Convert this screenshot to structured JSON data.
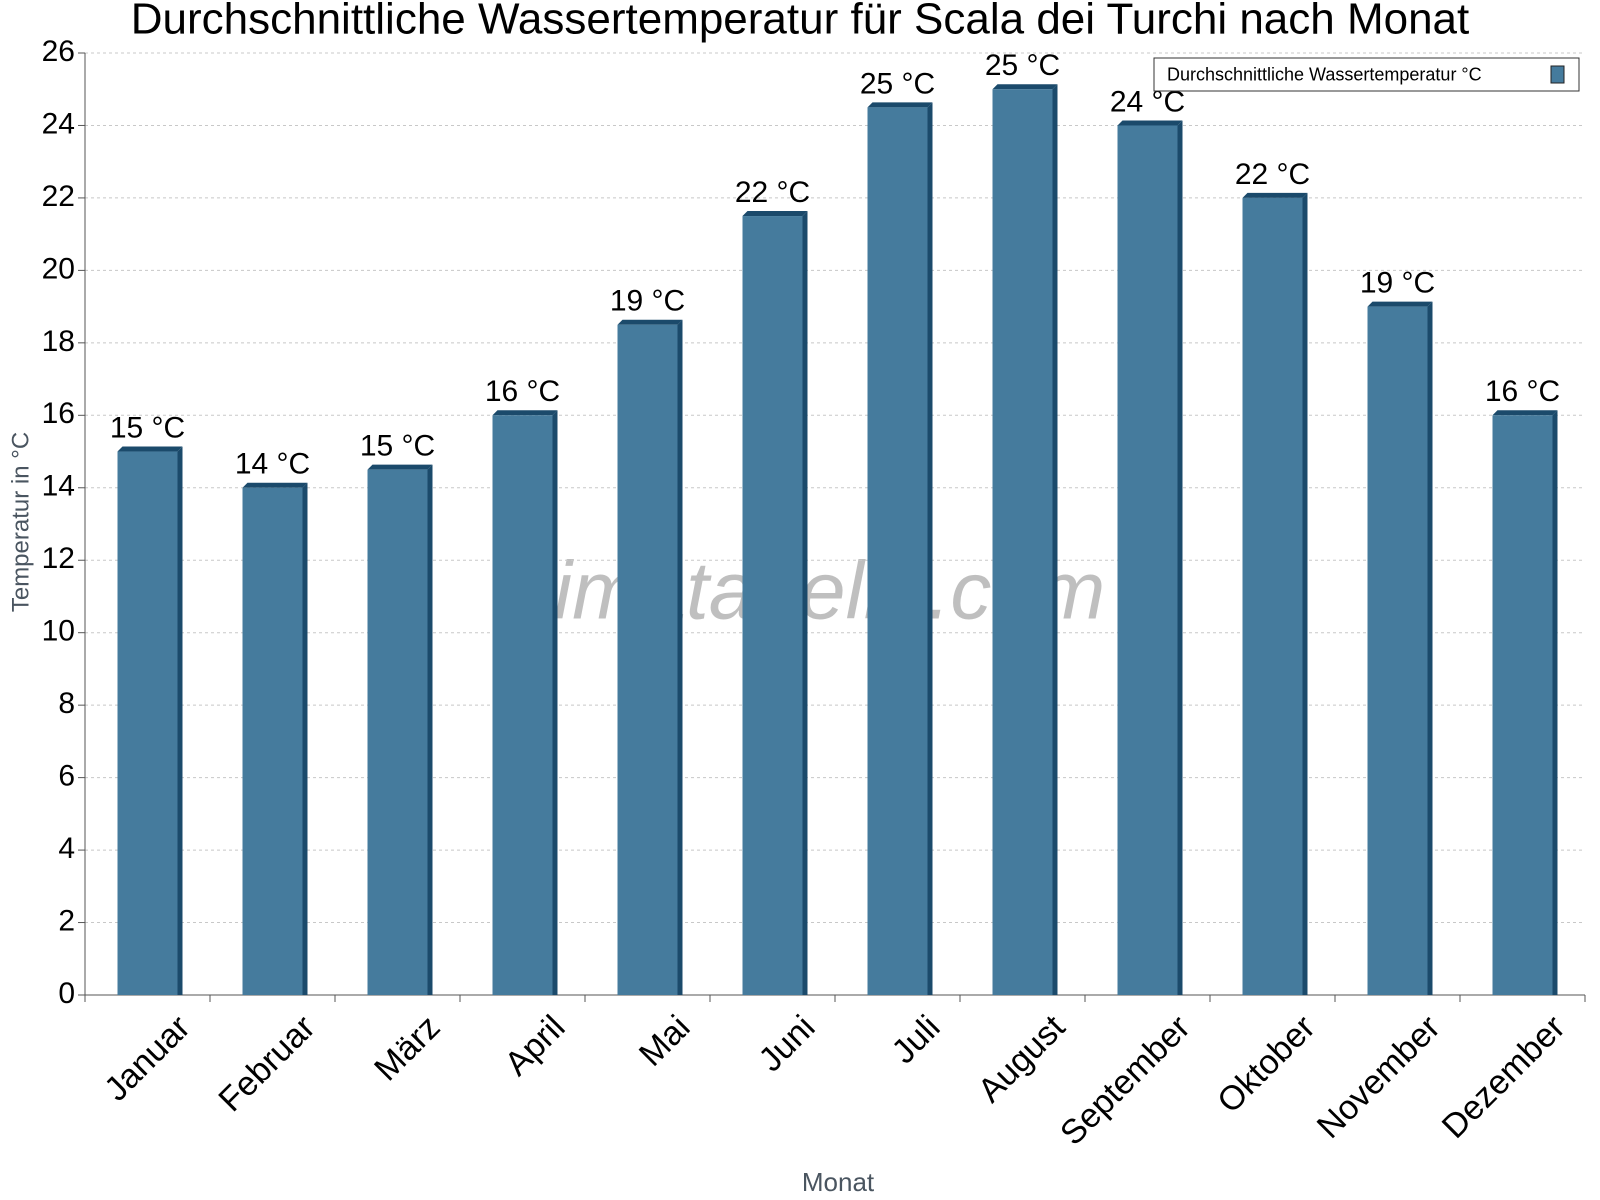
{
  "chart_data": {
    "type": "bar",
    "title": "Durchschnittliche Wassertemperatur für Scala dei Turchi nach Monat",
    "watermark": "klimatabelle.com",
    "x_label": "Monat",
    "y_label": "Temperatur in °C",
    "categories": [
      "Januar",
      "Februar",
      "März",
      "April",
      "Mai",
      "Juni",
      "Juli",
      "August",
      "September",
      "Oktober",
      "November",
      "Dezember"
    ],
    "series": [
      {
        "name": "Durchschnittliche Wassertemperatur °C",
        "color": "#457b9d",
        "values": [
          15,
          14,
          14.5,
          16,
          18.5,
          21.5,
          24.5,
          25,
          24,
          22,
          19,
          16
        ],
        "value_labels": [
          "15 °C",
          "14 °C",
          "15 °C",
          "16 °C",
          "19 °C",
          "22 °C",
          "25 °C",
          "25 °C",
          "24 °C",
          "22 °C",
          "19 °C",
          "16 °C"
        ]
      }
    ],
    "ylim": [
      0,
      26
    ],
    "yticks": [
      0,
      2,
      4,
      6,
      8,
      10,
      12,
      14,
      16,
      18,
      20,
      22,
      24,
      26
    ],
    "grid": true,
    "legend": "top-right"
  }
}
